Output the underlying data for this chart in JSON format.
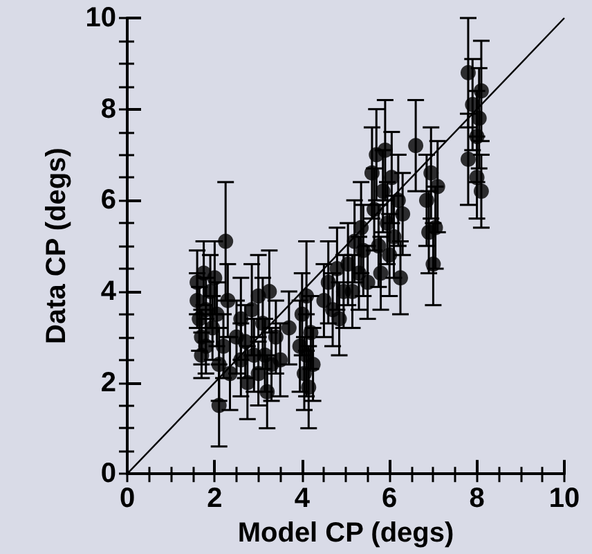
{
  "chart_data": {
    "type": "scatter",
    "xlabel": "Model CP (degs)",
    "ylabel": "Data CP (degs)",
    "xlim": [
      0,
      10
    ],
    "ylim": [
      0,
      10
    ],
    "xticks": [
      0,
      {
        "value": 0.5,
        "label": null
      },
      {
        "value": 1,
        "label": null
      },
      {
        "value": 1.5,
        "label": null
      },
      2,
      {
        "value": 2.5,
        "label": null
      },
      {
        "value": 3,
        "label": null
      },
      {
        "value": 3.5,
        "label": null
      },
      4,
      {
        "value": 4.5,
        "label": null
      },
      {
        "value": 5,
        "label": null
      },
      {
        "value": 5.5,
        "label": null
      },
      6,
      {
        "value": 6.5,
        "label": null
      },
      {
        "value": 7,
        "label": null
      },
      {
        "value": 7.5,
        "label": null
      },
      8,
      {
        "value": 8.5,
        "label": null
      },
      {
        "value": 9,
        "label": null
      },
      {
        "value": 9.5,
        "label": null
      },
      10
    ],
    "yticks": [
      0,
      {
        "value": 0.5,
        "label": null
      },
      {
        "value": 1,
        "label": null
      },
      {
        "value": 1.5,
        "label": null
      },
      2,
      {
        "value": 2.5,
        "label": null
      },
      {
        "value": 3,
        "label": null
      },
      {
        "value": 3.5,
        "label": null
      },
      4,
      {
        "value": 4.5,
        "label": null
      },
      {
        "value": 5,
        "label": null
      },
      {
        "value": 5.5,
        "label": null
      },
      6,
      {
        "value": 6.5,
        "label": null
      },
      {
        "value": 7,
        "label": null
      },
      {
        "value": 7.5,
        "label": null
      },
      8,
      {
        "value": 8.5,
        "label": null
      },
      {
        "value": 9,
        "label": null
      },
      {
        "value": 9.5,
        "label": null
      },
      10
    ],
    "grid": false,
    "marker": "circle",
    "series": [
      {
        "type": "line",
        "color": "#000000",
        "marker": "none",
        "line_style": "solid",
        "x": [
          0,
          10
        ],
        "values": [
          0,
          10
        ]
      },
      {
        "color": "#000000",
        "x": [
          1.6,
          1.6,
          1.65,
          1.7,
          1.7,
          1.75,
          1.8,
          1.8,
          1.9,
          1.95,
          2.0,
          2.05,
          2.1,
          2.1,
          2.2,
          2.25,
          2.3,
          2.35,
          2.5,
          2.6,
          2.6,
          2.7,
          2.75,
          2.85,
          2.9,
          3.0,
          3.0,
          3.1,
          3.15,
          3.2,
          3.25,
          3.3,
          3.4,
          3.5,
          3.7,
          3.95,
          4.0,
          4.05,
          4.1,
          4.1,
          4.15,
          4.2,
          4.25,
          4.5,
          4.6,
          4.7,
          4.8,
          4.85,
          4.95,
          5.05,
          5.15,
          5.2,
          5.3,
          5.35,
          5.4,
          5.5,
          5.6,
          5.65,
          5.7,
          5.75,
          5.8,
          5.85,
          5.9,
          5.95,
          6.0,
          6.05,
          6.1,
          6.2,
          6.25,
          6.3,
          6.6,
          6.85,
          6.9,
          6.95,
          7.0,
          7.05,
          7.1,
          7.8,
          7.8,
          7.9,
          8.0,
          8.0,
          8.05,
          8.1,
          8.1
        ],
        "values": [
          4.2,
          3.8,
          3.4,
          3.0,
          2.6,
          4.4,
          3.6,
          2.8,
          4.0,
          3.2,
          4.3,
          3.5,
          2.4,
          1.5,
          2.8,
          5.1,
          3.8,
          2.2,
          3.0,
          3.4,
          2.5,
          2.9,
          2.0,
          3.6,
          2.6,
          3.9,
          2.2,
          3.3,
          2.6,
          1.8,
          4.0,
          2.4,
          3.0,
          2.5,
          3.2,
          2.8,
          3.5,
          2.2,
          3.9,
          2.6,
          1.9,
          3.1,
          2.4,
          3.8,
          4.2,
          3.6,
          4.5,
          3.4,
          4.0,
          4.6,
          4.0,
          5.1,
          4.4,
          5.4,
          4.9,
          4.2,
          6.6,
          5.8,
          7.0,
          5.0,
          4.4,
          6.2,
          7.1,
          5.5,
          4.8,
          6.5,
          5.2,
          6.0,
          4.3,
          5.7,
          7.2,
          6.0,
          5.3,
          6.6,
          4.6,
          5.4,
          6.3,
          8.8,
          6.9,
          8.1,
          7.4,
          6.5,
          7.8,
          8.4,
          6.2
        ],
        "errors": [
          0.7,
          0.6,
          0.7,
          0.6,
          0.5,
          0.7,
          0.7,
          0.6,
          0.8,
          0.7,
          0.8,
          0.7,
          0.8,
          0.9,
          0.7,
          1.3,
          0.8,
          0.8,
          0.8,
          0.9,
          0.8,
          0.8,
          0.8,
          1.0,
          0.8,
          0.9,
          0.7,
          1.0,
          0.8,
          0.8,
          0.9,
          0.8,
          0.8,
          0.8,
          0.8,
          1.0,
          0.9,
          0.8,
          1.2,
          0.9,
          0.9,
          0.8,
          0.8,
          0.8,
          0.9,
          0.8,
          0.9,
          0.8,
          0.8,
          0.9,
          0.8,
          0.9,
          0.8,
          1.0,
          1.0,
          0.8,
          1.0,
          0.9,
          1.0,
          0.9,
          0.8,
          0.9,
          1.1,
          0.9,
          0.9,
          1.0,
          0.9,
          1.0,
          0.8,
          0.9,
          1.0,
          1.0,
          0.9,
          1.0,
          0.9,
          0.9,
          1.0,
          1.2,
          1.0,
          1.0,
          1.0,
          0.9,
          1.1,
          1.1,
          0.8
        ]
      }
    ]
  }
}
